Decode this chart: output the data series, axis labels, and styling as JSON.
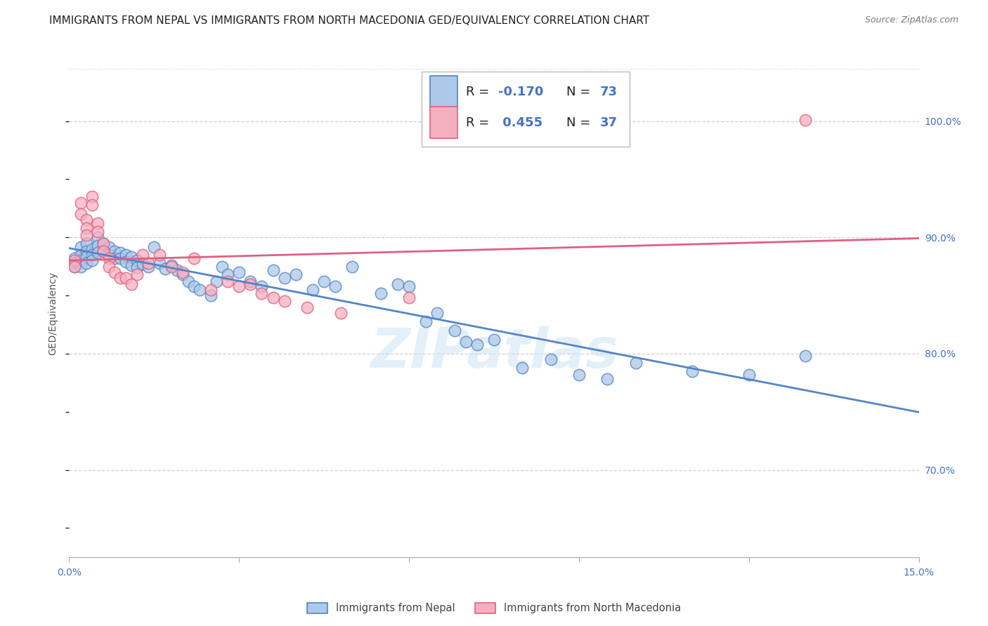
{
  "title": "IMMIGRANTS FROM NEPAL VS IMMIGRANTS FROM NORTH MACEDONIA GED/EQUIVALENCY CORRELATION CHART",
  "source": "Source: ZipAtlas.com",
  "ylabel": "GED/Equivalency",
  "ytick_labels": [
    "70.0%",
    "80.0%",
    "90.0%",
    "100.0%"
  ],
  "ytick_values": [
    0.7,
    0.8,
    0.9,
    1.0
  ],
  "xlim": [
    0.0,
    0.15
  ],
  "ylim": [
    0.625,
    1.045
  ],
  "nepal_R": -0.17,
  "nepal_N": 73,
  "macedonia_R": 0.455,
  "macedonia_N": 37,
  "nepal_color": "#adc8e8",
  "nepal_edge_color": "#5585c5",
  "macedonia_color": "#f5b0c0",
  "macedonia_edge_color": "#e06080",
  "legend_text_color": "#4472c4",
  "nepal_x": [
    0.001,
    0.001,
    0.001,
    0.002,
    0.002,
    0.002,
    0.002,
    0.003,
    0.003,
    0.003,
    0.003,
    0.004,
    0.004,
    0.004,
    0.005,
    0.005,
    0.005,
    0.006,
    0.006,
    0.007,
    0.007,
    0.008,
    0.008,
    0.009,
    0.009,
    0.01,
    0.01,
    0.011,
    0.011,
    0.012,
    0.012,
    0.013,
    0.014,
    0.015,
    0.016,
    0.017,
    0.018,
    0.019,
    0.02,
    0.021,
    0.022,
    0.023,
    0.025,
    0.026,
    0.027,
    0.028,
    0.03,
    0.032,
    0.034,
    0.036,
    0.038,
    0.04,
    0.043,
    0.045,
    0.047,
    0.05,
    0.055,
    0.058,
    0.06,
    0.063,
    0.065,
    0.068,
    0.07,
    0.072,
    0.075,
    0.08,
    0.085,
    0.09,
    0.095,
    0.1,
    0.11,
    0.12,
    0.13
  ],
  "nepal_y": [
    0.882,
    0.878,
    0.875,
    0.892,
    0.885,
    0.88,
    0.875,
    0.895,
    0.888,
    0.883,
    0.878,
    0.89,
    0.885,
    0.88,
    0.9,
    0.893,
    0.887,
    0.895,
    0.888,
    0.892,
    0.885,
    0.888,
    0.882,
    0.887,
    0.882,
    0.885,
    0.879,
    0.883,
    0.876,
    0.88,
    0.874,
    0.877,
    0.875,
    0.892,
    0.878,
    0.873,
    0.876,
    0.872,
    0.868,
    0.862,
    0.858,
    0.855,
    0.85,
    0.862,
    0.875,
    0.868,
    0.87,
    0.862,
    0.858,
    0.872,
    0.865,
    0.868,
    0.855,
    0.862,
    0.858,
    0.875,
    0.852,
    0.86,
    0.858,
    0.828,
    0.835,
    0.82,
    0.81,
    0.808,
    0.812,
    0.788,
    0.795,
    0.782,
    0.778,
    0.792,
    0.785,
    0.782,
    0.798
  ],
  "macedonia_x": [
    0.001,
    0.001,
    0.002,
    0.002,
    0.003,
    0.003,
    0.003,
    0.004,
    0.004,
    0.005,
    0.005,
    0.006,
    0.006,
    0.007,
    0.007,
    0.008,
    0.009,
    0.01,
    0.011,
    0.012,
    0.013,
    0.014,
    0.016,
    0.018,
    0.02,
    0.022,
    0.025,
    0.028,
    0.03,
    0.032,
    0.034,
    0.036,
    0.038,
    0.042,
    0.048,
    0.06,
    0.13
  ],
  "macedonia_y": [
    0.88,
    0.875,
    0.93,
    0.92,
    0.915,
    0.908,
    0.902,
    0.935,
    0.928,
    0.912,
    0.905,
    0.895,
    0.888,
    0.882,
    0.875,
    0.87,
    0.865,
    0.865,
    0.86,
    0.868,
    0.885,
    0.878,
    0.885,
    0.875,
    0.87,
    0.882,
    0.855,
    0.862,
    0.858,
    0.86,
    0.852,
    0.848,
    0.845,
    0.84,
    0.835,
    0.848,
    1.001
  ],
  "watermark": "ZIPatlas",
  "background_color": "#ffffff",
  "grid_color": "#d0d0d0",
  "title_fontsize": 11,
  "axis_label_fontsize": 10,
  "tick_fontsize": 10,
  "legend_fontsize": 13
}
